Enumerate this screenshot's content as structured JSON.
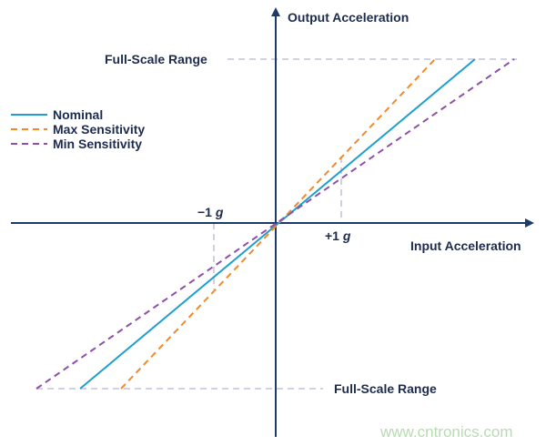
{
  "axes": {
    "y_label": "Output Acceleration",
    "x_label": "Input Acceleration"
  },
  "full_scale": {
    "top": "Full-Scale Range",
    "bottom": "Full-Scale Range"
  },
  "legend": [
    {
      "name": "Nominal",
      "color": "#1f9fd0"
    },
    {
      "name": "Max Sensitivity",
      "color": "#f08a2c"
    },
    {
      "name": "Min Sensitivity",
      "color": "#8e4fa8"
    }
  ],
  "markers": [
    {
      "sign": "−1",
      "unit": "g"
    },
    {
      "sign": "+1",
      "unit": "g"
    }
  ],
  "watermark": "www.cntronics.com"
}
